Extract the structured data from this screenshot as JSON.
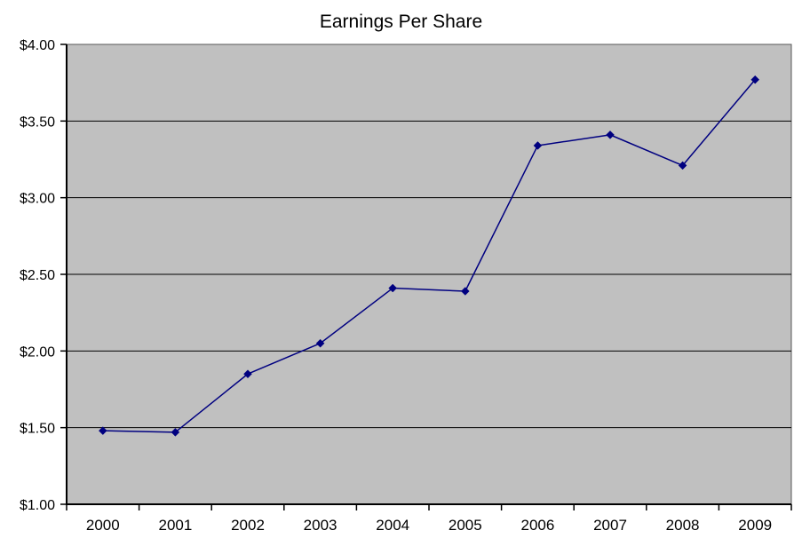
{
  "chart_data": {
    "type": "line",
    "title": "Earnings Per Share",
    "categories": [
      "2000",
      "2001",
      "2002",
      "2003",
      "2004",
      "2005",
      "2006",
      "2007",
      "2008",
      "2009"
    ],
    "series": [
      {
        "name": "Earnings Per Share",
        "values": [
          1.48,
          1.47,
          1.85,
          2.05,
          2.41,
          2.39,
          3.34,
          3.41,
          3.21,
          3.77
        ]
      }
    ],
    "xlabel": "",
    "ylabel": "",
    "ylim": [
      1.0,
      4.0
    ],
    "y_tick_step": 0.5,
    "y_tick_labels": [
      "$1.00",
      "$1.50",
      "$2.00",
      "$2.50",
      "$3.00",
      "$3.50",
      "$4.00"
    ],
    "grid": true,
    "legend_position": "none",
    "colors": {
      "line": "#000080",
      "marker": "#000080",
      "plot_background": "#c0c0c0",
      "plot_border": "#595959",
      "gridline": "#000000",
      "axis": "#000000",
      "text": "#000000",
      "page_background": "#ffffff"
    }
  }
}
